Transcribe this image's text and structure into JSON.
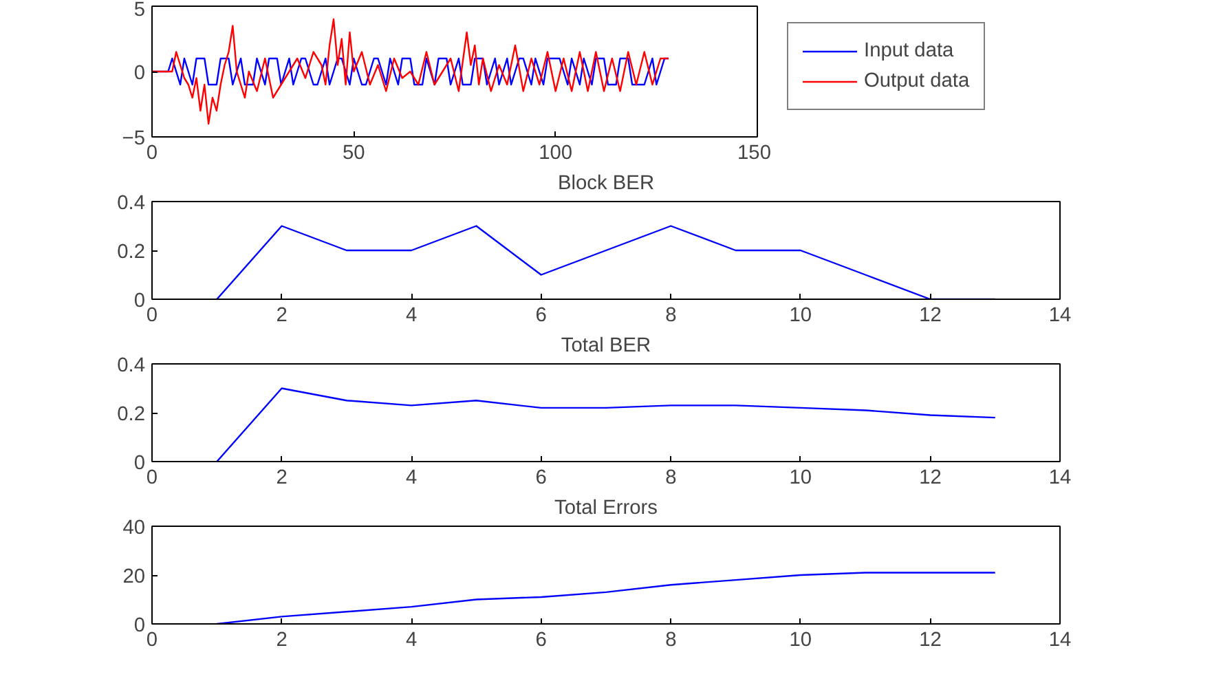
{
  "chart_data": [
    {
      "type": "line",
      "legend": "right",
      "grid": false,
      "xlim": [
        0,
        150
      ],
      "ylim": [
        -5,
        5
      ],
      "xticks": [
        0,
        50,
        100,
        150
      ],
      "yticks": [
        -5,
        0,
        5
      ],
      "series": [
        {
          "name": "Input data",
          "color": "#0000ff",
          "x": [
            0,
            4,
            5,
            7,
            8,
            10,
            11,
            13,
            14,
            16,
            17,
            19,
            20,
            22,
            23,
            25,
            26,
            28,
            29,
            31,
            32,
            34,
            35,
            37,
            38,
            40,
            41,
            43,
            44,
            46,
            47,
            49,
            50,
            52,
            53,
            55,
            56,
            58,
            59,
            61,
            62,
            64,
            65,
            67,
            68,
            70,
            71,
            73,
            74,
            76,
            77,
            79,
            80,
            82,
            83,
            85,
            86,
            88,
            89,
            91,
            92,
            94,
            95,
            97,
            98,
            100,
            101,
            103,
            104,
            106,
            107,
            109,
            110,
            112,
            113,
            115,
            116,
            118,
            119,
            121,
            122,
            124,
            125,
            127,
            128
          ],
          "values": [
            0,
            0,
            1,
            -1,
            1,
            -1,
            1,
            1,
            -1,
            -1,
            1,
            1,
            -1,
            1,
            -1,
            -1,
            1,
            -1,
            1,
            1,
            -1,
            1,
            -1,
            1,
            1,
            -1,
            -1,
            1,
            -1,
            1,
            1,
            -1,
            1,
            -1,
            -1,
            1,
            1,
            -1,
            1,
            -1,
            1,
            1,
            -1,
            -1,
            1,
            -1,
            1,
            1,
            -1,
            1,
            -1,
            -1,
            1,
            1,
            -1,
            1,
            -1,
            1,
            -1,
            1,
            1,
            -1,
            1,
            -1,
            1,
            1,
            1,
            -1,
            1,
            -1,
            1,
            -1,
            1,
            1,
            -1,
            -1,
            1,
            1,
            -1,
            -1,
            -1,
            1,
            -1,
            1,
            1
          ]
        },
        {
          "name": "Output data",
          "color": "#ff0000",
          "x": [
            0,
            5,
            6,
            7,
            8,
            9,
            10,
            11,
            12,
            13,
            14,
            15,
            16,
            17,
            18,
            19,
            20,
            21,
            22,
            23,
            24,
            26,
            28,
            30,
            32,
            34,
            36,
            38,
            40,
            42,
            43,
            44,
            45,
            46,
            47,
            48,
            49,
            50,
            52,
            54,
            56,
            58,
            60,
            62,
            64,
            66,
            68,
            70,
            72,
            74,
            76,
            78,
            79,
            80,
            81,
            82,
            84,
            86,
            88,
            90,
            92,
            94,
            96,
            98,
            100,
            102,
            104,
            106,
            108,
            110,
            112,
            114,
            116,
            118,
            120,
            122,
            124,
            126,
            128
          ],
          "values": [
            0,
            0,
            1.5,
            0.5,
            -0.5,
            -1,
            -2,
            -0.5,
            -3,
            -1,
            -4,
            -2,
            -3,
            -1,
            0.5,
            1.5,
            3.5,
            0,
            -1,
            -2,
            0,
            -1.5,
            1,
            -2,
            -1,
            0,
            1,
            -0.5,
            1.5,
            0.5,
            -1,
            2,
            4,
            0.5,
            2.5,
            -1,
            3,
            0,
            1.5,
            -1,
            0.5,
            -1.5,
            1,
            -0.5,
            0,
            -1,
            1.5,
            -1,
            0,
            1,
            -1.5,
            3,
            0.5,
            2,
            -1,
            1,
            -1.5,
            0.5,
            -1,
            2,
            -1.5,
            1,
            -1,
            1.5,
            -1.5,
            1,
            -1.5,
            1.5,
            -1.5,
            1.5,
            -1.5,
            1,
            -1.5,
            1.5,
            -1,
            1.5,
            -1,
            1,
            1
          ]
        }
      ]
    },
    {
      "type": "line",
      "title": "Block BER",
      "grid": false,
      "xlim": [
        0,
        14
      ],
      "ylim": [
        0,
        0.4
      ],
      "xticks": [
        0,
        2,
        4,
        6,
        8,
        10,
        12,
        14
      ],
      "yticks": [
        0,
        0.2,
        0.4
      ],
      "x": [
        1,
        2,
        3,
        4,
        5,
        6,
        7,
        8,
        9,
        10,
        11,
        12,
        13
      ],
      "series": [
        {
          "color": "#0000ff",
          "values": [
            0,
            0.3,
            0.2,
            0.2,
            0.3,
            0.1,
            0.2,
            0.3,
            0.2,
            0.2,
            0.1,
            0,
            0
          ]
        }
      ]
    },
    {
      "type": "line",
      "title": "Total BER",
      "grid": false,
      "xlim": [
        0,
        14
      ],
      "ylim": [
        0,
        0.4
      ],
      "xticks": [
        0,
        2,
        4,
        6,
        8,
        10,
        12,
        14
      ],
      "yticks": [
        0,
        0.2,
        0.4
      ],
      "x": [
        1,
        2,
        3,
        4,
        5,
        6,
        7,
        8,
        9,
        10,
        11,
        12,
        13
      ],
      "series": [
        {
          "color": "#0000ff",
          "values": [
            0,
            0.3,
            0.25,
            0.23,
            0.25,
            0.22,
            0.22,
            0.23,
            0.23,
            0.22,
            0.21,
            0.19,
            0.18
          ]
        }
      ]
    },
    {
      "type": "line",
      "title": "Total Errors",
      "grid": false,
      "xlim": [
        0,
        14
      ],
      "ylim": [
        0,
        40
      ],
      "xticks": [
        0,
        2,
        4,
        6,
        8,
        10,
        12,
        14
      ],
      "yticks": [
        0,
        20,
        40
      ],
      "x": [
        1,
        2,
        3,
        4,
        5,
        6,
        7,
        8,
        9,
        10,
        11,
        12,
        13
      ],
      "series": [
        {
          "color": "#0000ff",
          "values": [
            0,
            3,
            5,
            7,
            10,
            11,
            13,
            16,
            18,
            20,
            21,
            21,
            21
          ]
        }
      ]
    }
  ]
}
